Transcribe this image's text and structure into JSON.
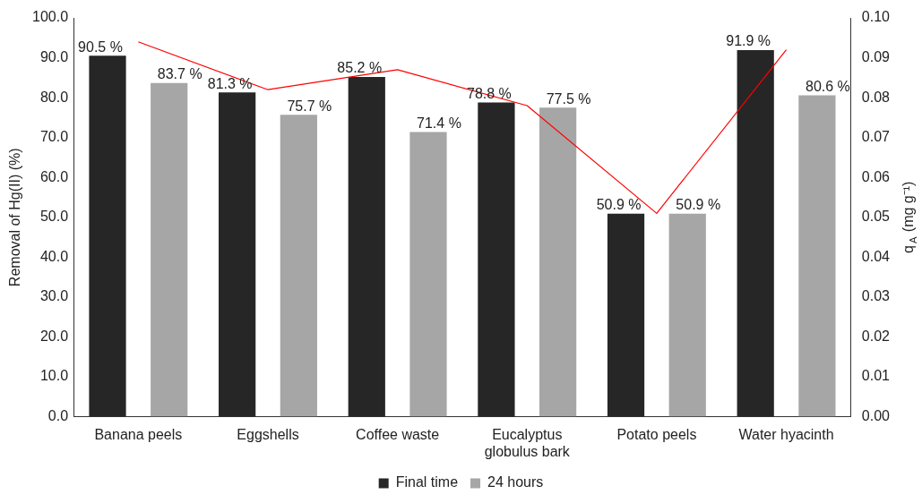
{
  "chart_data": {
    "type": "bar",
    "categories": [
      "Banana peels",
      "Eggshells",
      "Coffee waste",
      "Eucalyptus globulus bark",
      "Potato peels",
      "Water hyacinth"
    ],
    "ylabel": "Removal of Hg(II) (%)",
    "y2label": "q$_{A}$ (mg g⁻¹)",
    "series": [
      {
        "name": "Final time",
        "color": "#262626",
        "values": [
          90.5,
          81.3,
          85.2,
          78.8,
          50.9,
          91.9
        ],
        "value_labels": [
          "90.5 %",
          "81.3 %",
          "85.2 %",
          "78.8 %",
          "50.9 %",
          "91.9 %"
        ]
      },
      {
        "name": "24 hours",
        "color": "#a6a6a6",
        "values": [
          83.7,
          75.7,
          71.4,
          77.5,
          50.9,
          80.6
        ],
        "value_labels": [
          "83.7 %",
          "75.7 %",
          "71.4 %",
          "77.5 %",
          "50.9 %",
          "80.6 %"
        ]
      },
      {
        "type": "line",
        "axis": "y2",
        "color": "#ff0000",
        "values": [
          0.094,
          0.082,
          0.087,
          0.078,
          0.051,
          0.092
        ]
      }
    ],
    "ylim": [
      0,
      100
    ],
    "yticks": [
      {
        "value": 0,
        "label": "0.0"
      },
      {
        "value": 10,
        "label": "10.0"
      },
      {
        "value": 20,
        "label": "20.0"
      },
      {
        "value": 30,
        "label": "30.0"
      },
      {
        "value": 40,
        "label": "40.0"
      },
      {
        "value": 50,
        "label": "50.0"
      },
      {
        "value": 60,
        "label": "60.0"
      },
      {
        "value": 70,
        "label": "70.0"
      },
      {
        "value": 80,
        "label": "80.0"
      },
      {
        "value": 90,
        "label": "90.0"
      },
      {
        "value": 100,
        "label": "100.0"
      }
    ],
    "y2lim": [
      0,
      0.1
    ],
    "y2ticks": [
      {
        "value": 0,
        "label": "0.00"
      },
      {
        "value": 0.01,
        "label": "0.01"
      },
      {
        "value": 0.02,
        "label": "0.02"
      },
      {
        "value": 0.03,
        "label": "0.03"
      },
      {
        "value": 0.04,
        "label": "0.04"
      },
      {
        "value": 0.05,
        "label": "0.05"
      },
      {
        "value": 0.06,
        "label": "0.06"
      },
      {
        "value": 0.07,
        "label": "0.07"
      },
      {
        "value": 0.08,
        "label": "0.08"
      },
      {
        "value": 0.09,
        "label": "0.09"
      },
      {
        "value": 0.1,
        "label": "0.10"
      }
    ],
    "grid": false,
    "legend": "bottom",
    "marker": "none"
  }
}
